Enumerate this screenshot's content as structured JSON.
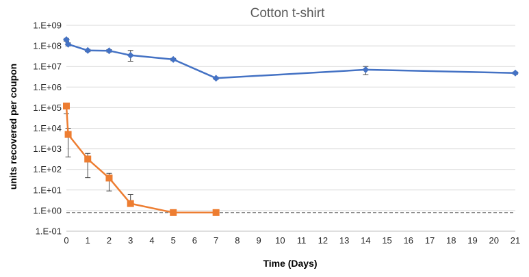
{
  "chart_data": {
    "type": "line",
    "title": "Cotton t-shirt",
    "xlabel": "Time (Days)",
    "ylabel": "units recovered per coupon",
    "x_ticks": [
      0,
      1,
      2,
      3,
      4,
      5,
      6,
      7,
      8,
      9,
      10,
      11,
      12,
      13,
      14,
      15,
      16,
      17,
      18,
      19,
      20,
      21
    ],
    "xlim": [
      0,
      21
    ],
    "y_scale": "log",
    "ylim": [
      0.1,
      1000000000
    ],
    "y_ticks": [
      {
        "value": 1000000000,
        "label": "1.E+09"
      },
      {
        "value": 100000000,
        "label": "1.E+08"
      },
      {
        "value": 10000000,
        "label": "1.E+07"
      },
      {
        "value": 1000000,
        "label": "1.E+06"
      },
      {
        "value": 100000,
        "label": "1.E+05"
      },
      {
        "value": 10000,
        "label": "1.E+04"
      },
      {
        "value": 1000,
        "label": "1.E+03"
      },
      {
        "value": 100,
        "label": "1.E+02"
      },
      {
        "value": 10,
        "label": "1.E+01"
      },
      {
        "value": 1,
        "label": "1.E+00"
      },
      {
        "value": 0.1,
        "label": "1.E-01"
      }
    ],
    "grid": "horizontal",
    "reference_line": {
      "y": 0.8,
      "style": "dashed",
      "color": "#595959"
    },
    "series": [
      {
        "color": "#4472c4",
        "marker": "diamond",
        "points": [
          {
            "x": 0,
            "y": 200000000,
            "err_low": 170000000,
            "err_high": 230000000
          },
          {
            "x": 0.083,
            "y": 120000000,
            "err_low": 100000000,
            "err_high": 140000000
          },
          {
            "x": 1,
            "y": 60000000,
            "err_low": 52000000,
            "err_high": 68000000
          },
          {
            "x": 2,
            "y": 58000000,
            "err_low": 50000000,
            "err_high": 66000000
          },
          {
            "x": 3,
            "y": 35000000,
            "err_low": 18000000,
            "err_high": 60000000
          },
          {
            "x": 5,
            "y": 22000000,
            "err_low": 19000000,
            "err_high": 25000000
          },
          {
            "x": 7,
            "y": 2700000,
            "err_low": 2400000,
            "err_high": 3000000
          },
          {
            "x": 14,
            "y": 7000000,
            "err_low": 4000000,
            "err_high": 10000000
          },
          {
            "x": 21,
            "y": 4800000,
            "err_low": 4200000,
            "err_high": 5400000
          }
        ]
      },
      {
        "color": "#ed7d31",
        "marker": "square",
        "points": [
          {
            "x": 0,
            "y": 120000,
            "err_low": 50000,
            "err_high": 160000
          },
          {
            "x": 0.083,
            "y": 5000,
            "err_low": 400,
            "err_high": 10000
          },
          {
            "x": 1,
            "y": 320,
            "err_low": 40,
            "err_high": 600
          },
          {
            "x": 2,
            "y": 38,
            "err_low": 9,
            "err_high": 65
          },
          {
            "x": 3,
            "y": 2.2,
            "err_low": 2.2,
            "err_high": 6
          },
          {
            "x": 5,
            "y": 0.8,
            "err_low": 0.8,
            "err_high": 0.8
          },
          {
            "x": 7,
            "y": 0.8,
            "err_low": 0.8,
            "err_high": 0.8
          }
        ]
      }
    ]
  }
}
